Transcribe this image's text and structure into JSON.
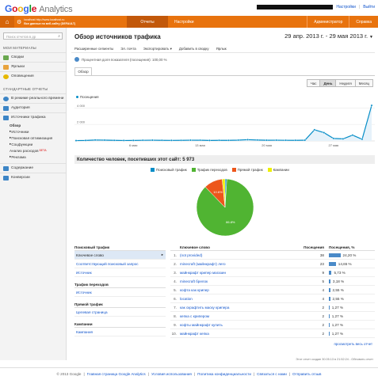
{
  "app": {
    "logo_google": [
      "G",
      "o",
      "o",
      "g",
      "l",
      "e"
    ],
    "logo_product": "Analytics"
  },
  "top_links": {
    "settings": "Настройки",
    "sep": "|",
    "logout": "Выйти"
  },
  "navbar": {
    "account_line1": "localhost http://www.localhost.ru",
    "account_line2": "Все данные по веб-сайту (DEFAULT)",
    "tabs": [
      "Отчеты",
      "Настройки"
    ],
    "right_tabs": [
      "Администратор",
      "Справка"
    ]
  },
  "sidebar": {
    "search_placeholder": "Поиск отчетов в др",
    "my_materials": "МОИ МАТЕРИАЛЫ",
    "my_items": [
      "Сводки",
      "Ярлыки",
      "Оповещения"
    ],
    "std_reports": "СТАНДАРТНЫЕ ОТЧЕТЫ",
    "realtime": "В режиме реального времени",
    "audience": "Аудитория",
    "sources": "Источники трафика",
    "sources_sub": [
      "Обзор",
      "Источники",
      "Поисковая оптимизация",
      "Соцфункции",
      "Анализ расходов",
      "Реклама"
    ],
    "beta": "БЕТА",
    "content": "Содержание",
    "conversions": "Конверсии"
  },
  "page": {
    "title": "Обзор источников трафика",
    "date_range": "29 апр. 2013 г. - 29 мая 2013 г.",
    "toolbar": [
      "Расширенные сегменты",
      "Эл. почта",
      "Экспортировать ▾",
      "Добавить в сводку",
      "Ярлык"
    ],
    "pct_text": "Процентная доля показателя (посещения): 100,00 %",
    "tab_overview": "Обзор",
    "granularity": [
      "Час",
      "День",
      "Неделя",
      "Месяц"
    ],
    "granularity_selected": "День",
    "metric_legend": "Посещения"
  },
  "chart_data": {
    "type": "line",
    "series": [
      {
        "name": "Посещения",
        "values": [
          40,
          60,
          110,
          95,
          70,
          55,
          60,
          80,
          90,
          75,
          65,
          70,
          90,
          85,
          60,
          75,
          70,
          95,
          150,
          110,
          85,
          90,
          80,
          75,
          85,
          1350,
          1000,
          300,
          250,
          700,
          200,
          4300
        ]
      }
    ],
    "y_ticks": [
      "4 000",
      "2 000"
    ],
    "ylim": [
      0,
      4600
    ],
    "x_labels": [
      "6 мая",
      "13 мая",
      "20 мая",
      "27 мая"
    ],
    "x_label_positions": [
      7,
      14,
      21,
      28
    ],
    "color": "#058dc7"
  },
  "visitors_section": {
    "title": "Количество человек, посетивших этот сайт: 5 973"
  },
  "pie_chart": {
    "type": "pie",
    "slices": [
      {
        "label": "Поисковый трафик",
        "value": 1.0,
        "color": "#058dc7"
      },
      {
        "label": "Трафик переходов",
        "value": 86.8,
        "color": "#50b432"
      },
      {
        "label": "Прямой трафик",
        "value": 10.6,
        "color": "#ed561b"
      },
      {
        "label": "Кампании",
        "value": 1.6,
        "color": "#edef00"
      }
    ],
    "slice_labels": [
      "86.8%",
      "10.6%"
    ]
  },
  "left_table": {
    "groups": [
      {
        "header": "Поисковый трафик",
        "items": [
          "Ключевое слово",
          "Соответствующий поисковый запрос",
          "Источник"
        ]
      },
      {
        "header": "Трафик переходов",
        "items": [
          "Источник"
        ]
      },
      {
        "header": "Прямой трафик",
        "items": [
          "Целевая страница"
        ]
      },
      {
        "header": "Кампании",
        "items": [
          "Кампания"
        ]
      }
    ]
  },
  "right_table": {
    "headers": [
      "Ключевое слово",
      "Посещения",
      "Посещения, %"
    ],
    "rows": [
      {
        "idx": "1.",
        "kw": "(not provided)",
        "visits": "38",
        "pct": "24,20 %",
        "frac": 0.242
      },
      {
        "idx": "2.",
        "kw": "minecraft (майнкрафт) лего",
        "visits": "23",
        "pct": "14,65 %",
        "frac": 0.1465
      },
      {
        "idx": "3.",
        "kw": "майнкрафт крипер магазин",
        "visits": "9",
        "pct": "5,73 %",
        "frac": 0.0573
      },
      {
        "idx": "4.",
        "kw": "minecraft брелок",
        "visits": "5",
        "pct": "3,18 %",
        "frac": 0.0318
      },
      {
        "idx": "5.",
        "kw": "кофта как крипер",
        "visits": "4",
        "pct": "2,55 %",
        "frac": 0.0255
      },
      {
        "idx": "6.",
        "kw": "location",
        "visits": "4",
        "pct": "2,55 %",
        "frac": 0.0255
      },
      {
        "idx": "7.",
        "kw": "как скрафтить маску крипера",
        "visits": "2",
        "pct": "1,27 %",
        "frac": 0.0127
      },
      {
        "idx": "8.",
        "kw": "кепка с крипером",
        "visits": "2",
        "pct": "1,27 %",
        "frac": 0.0127
      },
      {
        "idx": "9.",
        "kw": "кофты майнкрафт купить",
        "visits": "2",
        "pct": "1,27 %",
        "frac": 0.0127
      },
      {
        "idx": "10.",
        "kw": "майнкрафт кепка",
        "visits": "2",
        "pct": "1,27 %",
        "frac": 0.0127
      }
    ],
    "view_full": "просмотреть весь отчет"
  },
  "created_text": "Этот отчет создан 30.05.13 в 21:52:24 - Обновить отчет",
  "footer": {
    "copyright": "© 2013 Google",
    "links": [
      "Главная страница Google Analytics",
      "Условия использования",
      "Политика конфиденциальности",
      "Связаться с нами",
      "Отправить отзыв"
    ]
  }
}
